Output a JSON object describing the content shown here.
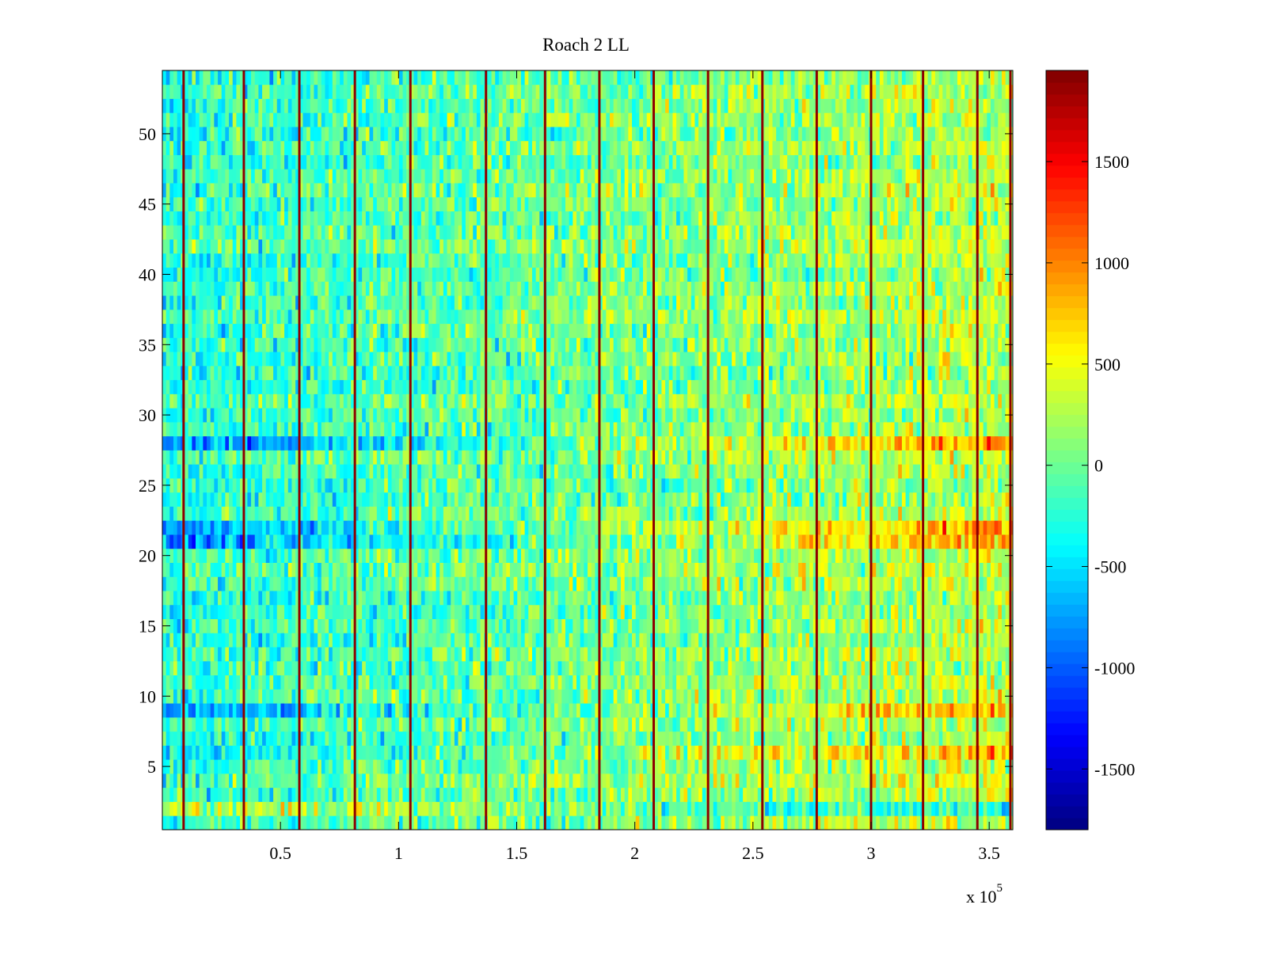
{
  "chart_data": {
    "type": "heatmap",
    "title": "Roach 2 LL",
    "xlabel": "",
    "ylabel": "",
    "x_range": [
      0,
      360000
    ],
    "y_range": [
      0.5,
      54.5
    ],
    "num_rows": 54,
    "x_ticks": [
      {
        "value": 50000,
        "label": "0.5"
      },
      {
        "value": 100000,
        "label": "1"
      },
      {
        "value": 150000,
        "label": "1.5"
      },
      {
        "value": 200000,
        "label": "2"
      },
      {
        "value": 250000,
        "label": "2.5"
      },
      {
        "value": 300000,
        "label": "3"
      },
      {
        "value": 350000,
        "label": "3.5"
      }
    ],
    "x_exponent": {
      "base": "x 10",
      "power": "5"
    },
    "y_ticks": [
      {
        "value": 5,
        "label": "5"
      },
      {
        "value": 10,
        "label": "10"
      },
      {
        "value": 15,
        "label": "15"
      },
      {
        "value": 20,
        "label": "20"
      },
      {
        "value": 25,
        "label": "25"
      },
      {
        "value": 30,
        "label": "30"
      },
      {
        "value": 35,
        "label": "35"
      },
      {
        "value": 40,
        "label": "40"
      },
      {
        "value": 45,
        "label": "45"
      },
      {
        "value": 50,
        "label": "50"
      }
    ],
    "colorbar": {
      "colormap": "jet",
      "range": [
        -1800,
        1950
      ],
      "ticks": [
        {
          "value": 1500,
          "label": "1500"
        },
        {
          "value": 1000,
          "label": "1000"
        },
        {
          "value": 500,
          "label": "500"
        },
        {
          "value": 0,
          "label": "0"
        },
        {
          "value": -500,
          "label": "-500"
        },
        {
          "value": -1000,
          "label": "-1000"
        },
        {
          "value": -1500,
          "label": "-1500"
        }
      ]
    },
    "vertical_spike_columns_x": [
      9000,
      34500,
      58000,
      81500,
      105000,
      137000,
      162000,
      185000,
      208000,
      231000,
      254000,
      277000,
      300000,
      322000,
      345000,
      366000
    ],
    "spike_value": 1900,
    "row_bias": [
      {
        "row": 2,
        "early": 700,
        "late": -600
      },
      {
        "row": 6,
        "early": -300,
        "late": 500
      },
      {
        "row": 9,
        "early": -600,
        "late": 500
      },
      {
        "row": 21,
        "early": -600,
        "late": 700
      },
      {
        "row": 22,
        "early": -500,
        "late": 650
      },
      {
        "row": 28,
        "early": -700,
        "late": 600
      }
    ],
    "trend": {
      "start_mean": -250,
      "end_mean": 300,
      "noise": 380
    }
  }
}
